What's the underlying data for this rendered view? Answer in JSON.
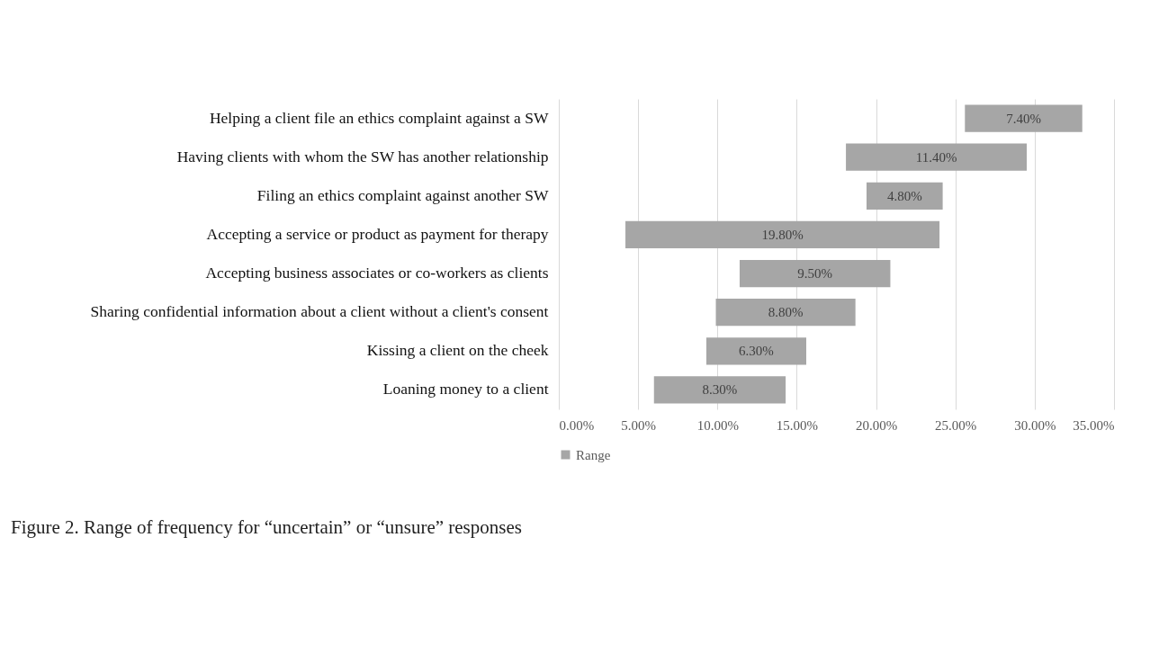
{
  "chart_data": {
    "type": "bar",
    "orientation": "horizontal",
    "categories": [
      "Helping a client file an ethics complaint against a SW",
      "Having clients with whom the SW has another relationship",
      "Filing an ethics complaint against another SW",
      "Accepting a service or product as payment for therapy",
      "Accepting business associates or co-workers as clients",
      "Sharing confidential information about a client without a client's consent",
      "Kissing a client on the cheek",
      "Loaning money to a client"
    ],
    "series": [
      {
        "name": "Range",
        "color": "#a6a6a6",
        "base": [
          25.6,
          18.1,
          19.4,
          4.2,
          11.4,
          9.9,
          9.3,
          6.0
        ],
        "values": [
          7.4,
          11.4,
          4.8,
          19.8,
          9.5,
          8.8,
          6.3,
          8.3
        ],
        "value_labels": [
          "7.40%",
          "11.40%",
          "4.80%",
          "19.80%",
          "9.50%",
          "8.80%",
          "6.30%",
          "8.30%"
        ]
      }
    ],
    "xlim": [
      0,
      35
    ],
    "xticks": [
      {
        "value": 0,
        "label": "0.00%"
      },
      {
        "value": 5,
        "label": "5.00%"
      },
      {
        "value": 10,
        "label": "10.00%"
      },
      {
        "value": 15,
        "label": "15.00%"
      },
      {
        "value": 20,
        "label": "20.00%"
      },
      {
        "value": 25,
        "label": "25.00%"
      },
      {
        "value": 30,
        "label": "30.00%"
      },
      {
        "value": 35,
        "label": "35.00%"
      }
    ],
    "grid": "x",
    "legend": "bottom",
    "annotations": [
      "Figure 2. Range of frequency for “uncertain” or “unsure” responses"
    ]
  }
}
